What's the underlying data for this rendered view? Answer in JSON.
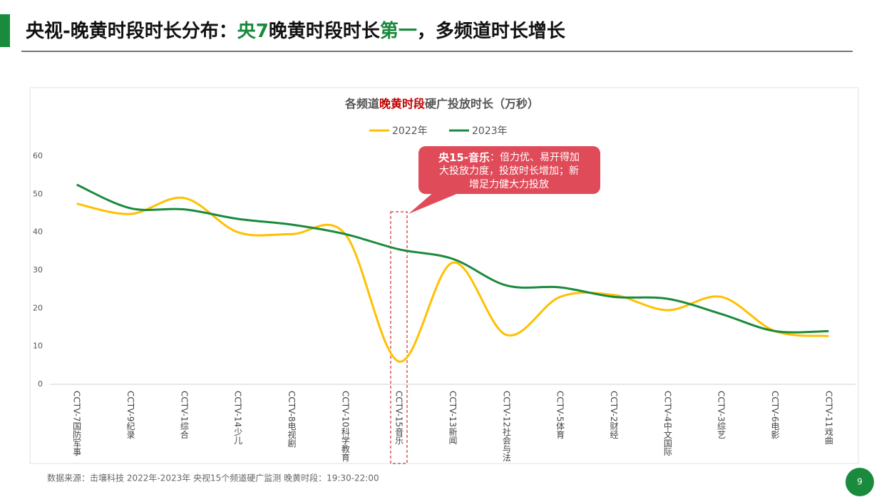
{
  "page": {
    "title_parts": [
      "央视-晚黄时段时长分布：",
      "央7",
      "晚黄时段时长",
      "第一",
      "，多频道时长增长"
    ],
    "footer": "数据来源：击壤科技  2022年-2023年 央视15个频道硬广监测    晚黄时段：19:30-22:00",
    "page_number": "9",
    "callout_lines": [
      [
        "央15-音乐",
        "：倍力优、易开得加"
      ],
      [
        "大投放力度，投放时长增加；新"
      ],
      [
        "增足力健大力投放"
      ]
    ]
  },
  "chart_data": {
    "type": "line",
    "smooth": true,
    "title_parts": [
      "各频道",
      "晚黄时段",
      "硬广投放时长（万秒）"
    ],
    "categories": [
      "CCTV-7国防军事",
      "CCTV-9纪录",
      "CCTV-1综合",
      "CCTV-14少儿",
      "CCTV-8电视剧",
      "CCTV-10科学教育",
      "CCTV-15音乐",
      "CCTV-13新闻",
      "CCTV-12社会与法",
      "CCTV-5体育",
      "CCTV-2财经",
      "CCTV-4中文国际",
      "CCTV-3综艺",
      "CCTV-6电影",
      "CCTV-11戏曲"
    ],
    "series": [
      {
        "name": "2022年",
        "color": "#FFC000",
        "values": [
          47.5,
          44.8,
          49,
          40,
          39.5,
          39.5,
          6,
          32,
          13,
          23,
          23.5,
          19.5,
          23,
          14,
          12.7
        ]
      },
      {
        "name": "2023年",
        "color": "#1A8A3C",
        "values": [
          52.5,
          46.3,
          46,
          43.5,
          42,
          39.5,
          35.5,
          33,
          26,
          25.5,
          23,
          22.5,
          18.5,
          14,
          14
        ]
      }
    ],
    "ylim": [
      0,
      60
    ],
    "yticks": [
      0,
      10,
      20,
      30,
      40,
      50,
      60
    ],
    "grid": false,
    "legend": "top"
  }
}
